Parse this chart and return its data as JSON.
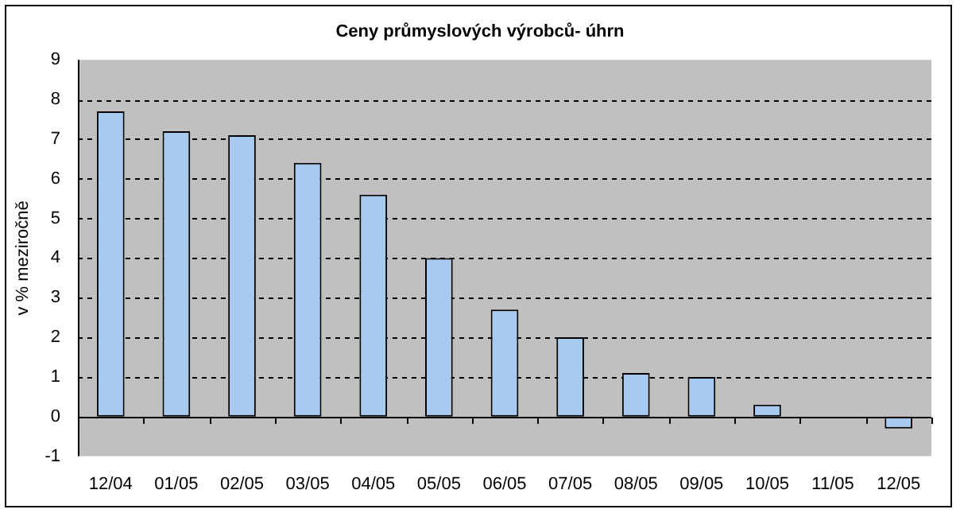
{
  "chart_data": {
    "type": "bar",
    "title": "Ceny průmyslových výrobců- úhrn",
    "ylabel": "v % meziročně",
    "categories": [
      "12/04",
      "01/05",
      "02/05",
      "03/05",
      "04/05",
      "05/05",
      "06/05",
      "07/05",
      "08/05",
      "09/05",
      "10/05",
      "11/05",
      "12/05"
    ],
    "values": [
      7.7,
      7.2,
      7.1,
      6.4,
      5.6,
      4.0,
      2.7,
      2.0,
      1.1,
      1.0,
      0.3,
      0,
      -0.3
    ],
    "color": "#a6caf0",
    "ylim": [
      -1,
      9
    ],
    "yticks": [
      -1,
      0,
      1,
      2,
      3,
      4,
      5,
      6,
      7,
      8,
      9
    ],
    "grid": "y",
    "legend": false
  }
}
